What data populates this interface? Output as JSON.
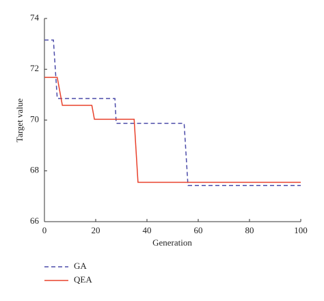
{
  "chart_data": {
    "type": "line",
    "x_label": "Generation",
    "y_label": "Target value",
    "xlim": [
      0,
      100
    ],
    "ylim": [
      66,
      74
    ],
    "xticks": [
      0,
      20,
      40,
      60,
      80,
      100
    ],
    "yticks": [
      66,
      68,
      70,
      72,
      74
    ],
    "series": [
      {
        "name": "GA",
        "color": "#4a4aa8",
        "linestyle": "dashed",
        "x": [
          0,
          3.5,
          5,
          27.5,
          28,
          54.5,
          56,
          100
        ],
        "values": [
          73.15,
          73.15,
          70.85,
          70.85,
          69.87,
          69.87,
          67.42,
          67.42
        ]
      },
      {
        "name": "QEA",
        "color": "#e8402a",
        "linestyle": "solid",
        "x": [
          0,
          5,
          7,
          18.5,
          19.5,
          35,
          36.5,
          100
        ],
        "values": [
          71.68,
          71.68,
          70.58,
          70.58,
          70.03,
          70.03,
          67.55,
          67.55
        ]
      }
    ]
  }
}
